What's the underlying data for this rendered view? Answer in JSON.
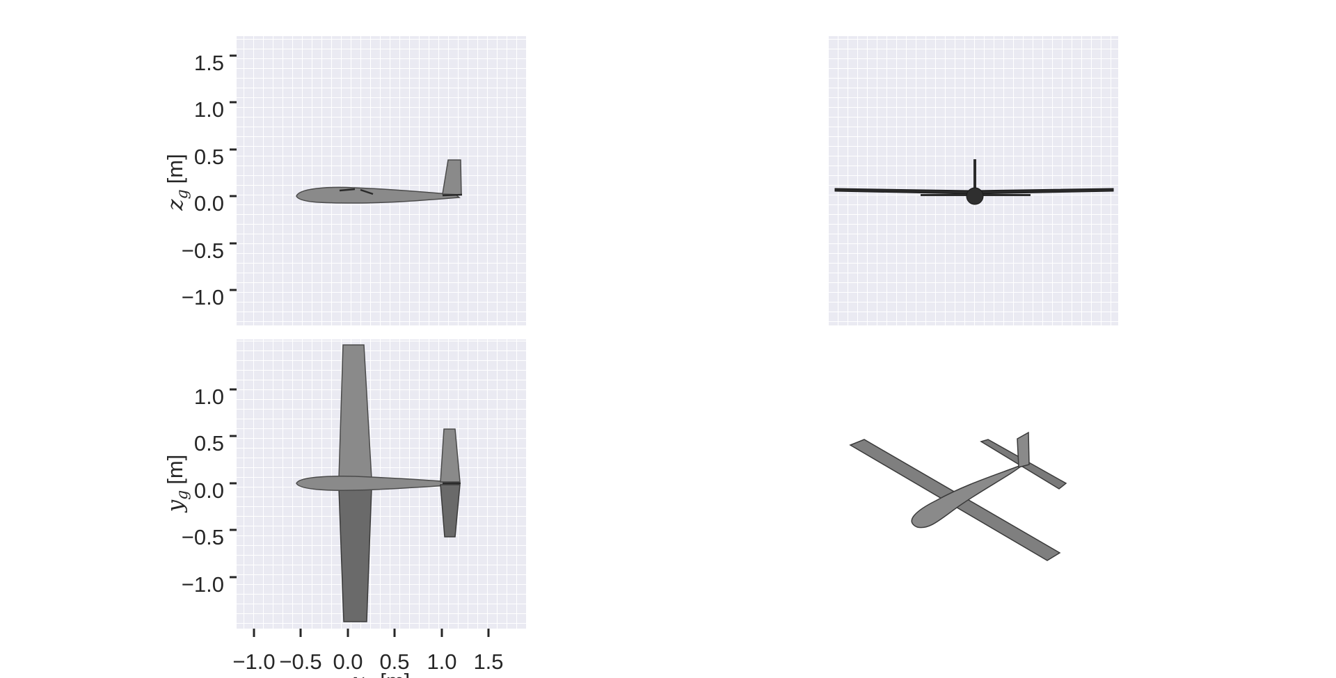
{
  "figure": {
    "panels": {
      "side_view": {
        "y_axis": {
          "label_symbol": "z",
          "label_subscript": "g",
          "label_unit": "[m]",
          "ticks": [
            "1.5",
            "1.0",
            "0.5",
            "0.0",
            "−0.5",
            "−1.0"
          ]
        }
      },
      "top_view": {
        "y_axis": {
          "label_symbol": "y",
          "label_subscript": "g",
          "label_unit": "[m]",
          "ticks": [
            "1.0",
            "0.5",
            "0.0",
            "−0.5",
            "−1.0"
          ]
        },
        "x_axis": {
          "label_symbol": "x",
          "label_subscript": "g",
          "label_unit": "[m]",
          "ticks": [
            "−1.0",
            "−0.5",
            "0.0",
            "0.5",
            "1.0",
            "1.5"
          ]
        }
      },
      "front_view": {},
      "isometric_view": {}
    },
    "colors": {
      "panel_background": "#eaeaf2",
      "grid": "#ffffff",
      "aircraft_fill": "#8a8a8a",
      "aircraft_stroke": "#4a4a4a",
      "aircraft_dark": "#2a2a2a",
      "text": "#262626"
    }
  }
}
